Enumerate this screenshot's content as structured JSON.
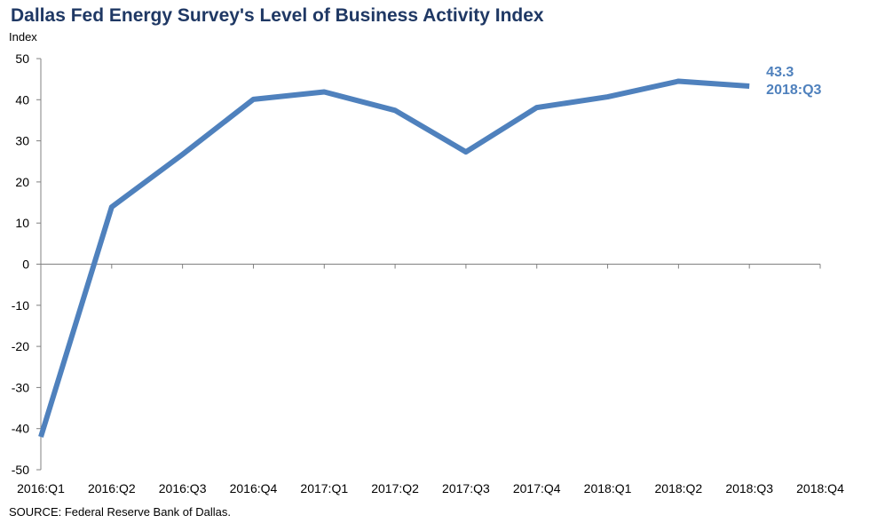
{
  "chart_data": {
    "type": "line",
    "title": "Dallas Fed Energy Survey's Level of Business Activity Index",
    "ylabel": "Index",
    "xlabel": "",
    "categories": [
      "2016:Q1",
      "2016:Q2",
      "2016:Q3",
      "2016:Q4",
      "2017:Q1",
      "2017:Q2",
      "2017:Q3",
      "2017:Q4",
      "2018:Q1",
      "2018:Q2",
      "2018:Q3",
      "2018:Q4"
    ],
    "series": [
      {
        "values": [
          -42.0,
          13.9,
          26.7,
          40.1,
          41.9,
          37.4,
          27.3,
          38.1,
          40.7,
          44.5,
          43.3,
          null
        ],
        "color": "#4f81bd"
      }
    ],
    "ylim": [
      -50,
      50
    ],
    "yticks": [
      50,
      40,
      30,
      20,
      10,
      0,
      -10,
      -20,
      -30,
      -40,
      -50
    ],
    "grid": false,
    "legend": "none",
    "annotation": {
      "value_text": "43.3",
      "period_text": "2018:Q3",
      "color": "#4f81bd"
    },
    "source": "SOURCE:  Federal Reserve  Bank of Dallas."
  }
}
